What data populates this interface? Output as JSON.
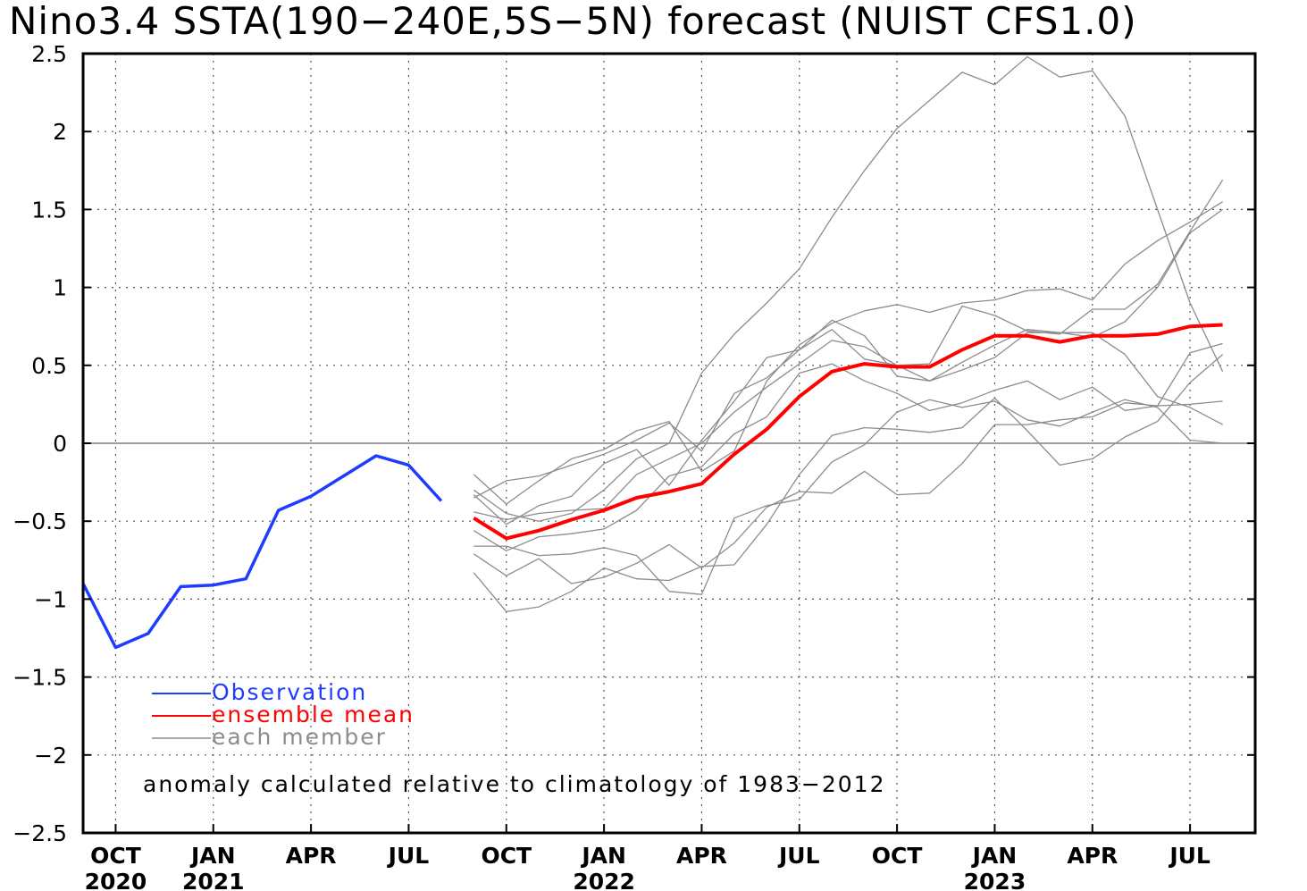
{
  "chart_data": {
    "type": "line",
    "title": "Nino3.4 SSTA(190-240E,5S-5N) forecast (NUIST CFS1.0)",
    "xlabel": "",
    "ylabel": "",
    "ylim": [
      -2.5,
      2.5
    ],
    "yticks": [
      "2.5",
      "2",
      "1.5",
      "1",
      "0.5",
      "0",
      "-0.5",
      "-1",
      "-1.5",
      "-2",
      "-2.5"
    ],
    "xlim": [
      "2020-09",
      "2023-09"
    ],
    "xticks": [
      {
        "x": "2020-10",
        "month": "OCT",
        "year": "2020"
      },
      {
        "x": "2021-01",
        "month": "JAN",
        "year": "2021"
      },
      {
        "x": "2021-04",
        "month": "APR",
        "year": ""
      },
      {
        "x": "2021-07",
        "month": "JUL",
        "year": ""
      },
      {
        "x": "2021-10",
        "month": "OCT",
        "year": ""
      },
      {
        "x": "2022-01",
        "month": "JAN",
        "year": "2022"
      },
      {
        "x": "2022-04",
        "month": "APR",
        "year": ""
      },
      {
        "x": "2022-07",
        "month": "JUL",
        "year": ""
      },
      {
        "x": "2022-10",
        "month": "OCT",
        "year": ""
      },
      {
        "x": "2023-01",
        "month": "JAN",
        "year": "2023"
      },
      {
        "x": "2023-04",
        "month": "APR",
        "year": ""
      },
      {
        "x": "2023-07",
        "month": "JUL",
        "year": ""
      }
    ],
    "grid": true,
    "zero_line": true,
    "legend": {
      "position": "bottom-left",
      "entries": [
        {
          "label": "Observation",
          "color": "#1e3cff"
        },
        {
          "label": "ensemble mean",
          "color": "#ff0000"
        },
        {
          "label": "each member",
          "color": "#8c8c8c"
        }
      ]
    },
    "annotation": "anomaly calculated relative to climatology of 1983-2012",
    "series": [
      {
        "name": "Observation",
        "role": "observation",
        "color": "#1e3cff",
        "x": [
          "2020-09",
          "2020-10",
          "2020-11",
          "2020-12",
          "2021-01",
          "2021-02",
          "2021-03",
          "2021-04",
          "2021-05",
          "2021-06",
          "2021-07",
          "2021-08"
        ],
        "y": [
          -0.9,
          -1.31,
          -1.22,
          -0.92,
          -0.91,
          -0.87,
          -0.43,
          -0.34,
          -0.21,
          -0.08,
          -0.14,
          -0.37
        ]
      },
      {
        "name": "ensemble mean",
        "role": "mean",
        "color": "#ff0000",
        "x": [
          "2021-09",
          "2021-10",
          "2021-11",
          "2021-12",
          "2022-01",
          "2022-02",
          "2022-03",
          "2022-04",
          "2022-05",
          "2022-06",
          "2022-07",
          "2022-08",
          "2022-09",
          "2022-10",
          "2022-11",
          "2022-12",
          "2023-01",
          "2023-02",
          "2023-03",
          "2023-04",
          "2023-05",
          "2023-06",
          "2023-07",
          "2023-08"
        ],
        "y": [
          -0.48,
          -0.61,
          -0.56,
          -0.49,
          -0.43,
          -0.35,
          -0.31,
          -0.26,
          -0.07,
          0.09,
          0.3,
          0.46,
          0.51,
          0.49,
          0.49,
          0.6,
          0.69,
          0.69,
          0.65,
          0.69,
          0.69,
          0.7,
          0.75,
          0.76
        ]
      },
      {
        "role": "member",
        "color": "#8c8c8c",
        "x": [
          "2021-09",
          "2021-10",
          "2021-11",
          "2021-12",
          "2022-01",
          "2022-02",
          "2022-03",
          "2022-04",
          "2022-05",
          "2022-06",
          "2022-07",
          "2022-08",
          "2022-09",
          "2022-10",
          "2022-11",
          "2022-12",
          "2023-01",
          "2023-02",
          "2023-03",
          "2023-04",
          "2023-05",
          "2023-06",
          "2023-07",
          "2023-08"
        ],
        "y": [
          -0.3,
          -0.45,
          -0.5,
          -0.45,
          -0.3,
          -0.1,
          0.0,
          0.45,
          0.7,
          0.9,
          1.12,
          1.45,
          1.75,
          2.02,
          2.2,
          2.38,
          2.3,
          2.48,
          2.35,
          2.39,
          2.1,
          1.5,
          0.9,
          0.46
        ]
      },
      {
        "role": "member",
        "color": "#8c8c8c",
        "x": [
          "2021-09",
          "2021-10",
          "2021-11",
          "2021-12",
          "2022-01",
          "2022-02",
          "2022-03",
          "2022-04",
          "2022-05",
          "2022-06",
          "2022-07",
          "2022-08",
          "2022-09",
          "2022-10",
          "2022-11",
          "2022-12",
          "2023-01",
          "2023-02",
          "2023-03",
          "2023-04",
          "2023-05",
          "2023-06",
          "2023-07",
          "2023-08"
        ],
        "y": [
          -0.2,
          -0.39,
          -0.24,
          -0.1,
          -0.04,
          0.08,
          0.14,
          -0.18,
          -0.05,
          0.4,
          0.63,
          0.77,
          0.85,
          0.89,
          0.84,
          0.9,
          0.92,
          0.98,
          0.99,
          0.92,
          1.15,
          1.3,
          1.42,
          1.55
        ]
      },
      {
        "role": "member",
        "color": "#8c8c8c",
        "x": [
          "2021-09",
          "2021-10",
          "2021-11",
          "2021-12",
          "2022-01",
          "2022-02",
          "2022-03",
          "2022-04",
          "2022-05",
          "2022-06",
          "2022-07",
          "2022-08",
          "2022-09",
          "2022-10",
          "2022-11",
          "2022-12",
          "2023-01",
          "2023-02",
          "2023-03",
          "2023-04",
          "2023-05",
          "2023-06",
          "2023-07",
          "2023-08"
        ],
        "y": [
          -0.35,
          -0.24,
          -0.21,
          -0.14,
          -0.07,
          0.02,
          0.13,
          -0.05,
          0.32,
          0.42,
          0.6,
          0.73,
          0.54,
          0.5,
          0.51,
          0.88,
          0.82,
          0.72,
          0.7,
          0.86,
          0.86,
          1.02,
          1.36,
          1.69
        ]
      },
      {
        "role": "member",
        "color": "#8c8c8c",
        "x": [
          "2021-09",
          "2021-10",
          "2021-11",
          "2021-12",
          "2022-01",
          "2022-02",
          "2022-03",
          "2022-04",
          "2022-05",
          "2022-06",
          "2022-07",
          "2022-08",
          "2022-09",
          "2022-10",
          "2022-11",
          "2022-12",
          "2023-01",
          "2023-02",
          "2023-03",
          "2023-04",
          "2023-05",
          "2023-06",
          "2023-07",
          "2023-08"
        ],
        "y": [
          -0.33,
          -0.52,
          -0.4,
          -0.34,
          -0.13,
          -0.04,
          -0.27,
          0.02,
          0.27,
          0.55,
          0.6,
          0.79,
          0.69,
          0.43,
          0.4,
          0.47,
          0.55,
          0.71,
          0.71,
          0.68,
          0.78,
          1.0,
          1.35,
          1.5
        ]
      },
      {
        "role": "member",
        "color": "#8c8c8c",
        "x": [
          "2021-09",
          "2021-10",
          "2021-11",
          "2021-12",
          "2022-01",
          "2022-02",
          "2022-03",
          "2022-04",
          "2022-05",
          "2022-06",
          "2022-07",
          "2022-08",
          "2022-09",
          "2022-10",
          "2022-11",
          "2022-12",
          "2023-01",
          "2023-02",
          "2023-03",
          "2023-04",
          "2023-05",
          "2023-06",
          "2023-07",
          "2023-08"
        ],
        "y": [
          -0.44,
          -0.49,
          -0.45,
          -0.43,
          -0.42,
          -0.2,
          -0.1,
          0.0,
          0.2,
          0.36,
          0.51,
          0.66,
          0.62,
          0.5,
          0.4,
          0.52,
          0.63,
          0.73,
          0.71,
          0.71,
          0.57,
          0.3,
          0.23,
          0.12
        ]
      },
      {
        "role": "member",
        "color": "#8c8c8c",
        "x": [
          "2021-09",
          "2021-10",
          "2021-11",
          "2021-12",
          "2022-01",
          "2022-02",
          "2022-03",
          "2022-04",
          "2022-05",
          "2022-06",
          "2022-07",
          "2022-08",
          "2022-09",
          "2022-10",
          "2022-11",
          "2022-12",
          "2023-01",
          "2023-02",
          "2023-03",
          "2023-04",
          "2023-05",
          "2023-06",
          "2023-07",
          "2023-08"
        ],
        "y": [
          -0.56,
          -0.69,
          -0.6,
          -0.58,
          -0.55,
          -0.43,
          -0.21,
          -0.15,
          0.06,
          0.17,
          0.45,
          0.51,
          0.4,
          0.32,
          0.21,
          0.26,
          0.34,
          0.4,
          0.28,
          0.36,
          0.21,
          0.24,
          0.25,
          0.27
        ]
      },
      {
        "role": "member",
        "color": "#8c8c8c",
        "x": [
          "2021-09",
          "2021-10",
          "2021-11",
          "2021-12",
          "2022-01",
          "2022-02",
          "2022-03",
          "2022-04",
          "2022-05",
          "2022-06",
          "2022-07",
          "2022-08",
          "2022-09",
          "2022-10",
          "2022-11",
          "2022-12",
          "2023-01",
          "2023-02",
          "2023-03",
          "2023-04",
          "2023-05",
          "2023-06",
          "2023-07",
          "2023-08"
        ],
        "y": [
          -0.66,
          -0.66,
          -0.72,
          -0.71,
          -0.67,
          -0.72,
          -0.95,
          -0.97,
          -0.48,
          -0.4,
          -0.36,
          -0.12,
          -0.01,
          0.2,
          0.28,
          0.23,
          0.27,
          0.15,
          0.11,
          0.2,
          0.28,
          0.23,
          0.02,
          0.0
        ]
      },
      {
        "role": "member",
        "color": "#8c8c8c",
        "x": [
          "2021-09",
          "2021-10",
          "2021-11",
          "2021-12",
          "2022-01",
          "2022-02",
          "2022-03",
          "2022-04",
          "2022-05",
          "2022-06",
          "2022-07",
          "2022-08",
          "2022-09",
          "2022-10",
          "2022-11",
          "2022-12",
          "2023-01",
          "2023-02",
          "2023-03",
          "2023-04",
          "2023-05",
          "2023-06",
          "2023-07",
          "2023-08"
        ],
        "y": [
          -0.83,
          -1.08,
          -1.05,
          -0.95,
          -0.8,
          -0.87,
          -0.88,
          -0.79,
          -0.78,
          -0.52,
          -0.2,
          0.05,
          0.1,
          0.09,
          0.07,
          0.1,
          0.29,
          0.08,
          -0.14,
          -0.1,
          0.04,
          0.14,
          0.39,
          0.57
        ]
      },
      {
        "role": "member",
        "color": "#8c8c8c",
        "x": [
          "2021-09",
          "2021-10",
          "2021-11",
          "2021-12",
          "2022-01",
          "2022-02",
          "2022-03",
          "2022-04",
          "2022-05",
          "2022-06",
          "2022-07",
          "2022-08",
          "2022-09",
          "2022-10",
          "2022-11",
          "2022-12",
          "2023-01",
          "2023-02",
          "2023-03",
          "2023-04",
          "2023-05",
          "2023-06",
          "2023-07",
          "2023-08"
        ],
        "y": [
          -0.71,
          -0.85,
          -0.74,
          -0.9,
          -0.86,
          -0.77,
          -0.65,
          -0.8,
          -0.64,
          -0.41,
          -0.31,
          -0.32,
          -0.18,
          -0.33,
          -0.32,
          -0.13,
          0.12,
          0.12,
          0.15,
          0.17,
          0.26,
          0.24,
          0.58,
          0.64
        ]
      }
    ]
  }
}
